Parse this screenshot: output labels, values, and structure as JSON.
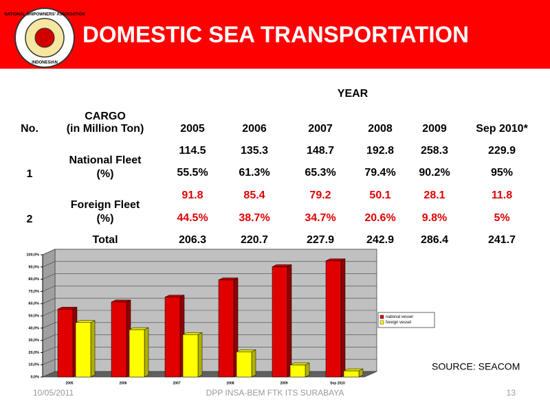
{
  "header": {
    "title": "DOMESTIC SEA TRANSPORTATION",
    "logo_text": [
      "NATIONAL SHIPOWNERS' ASSOCIATION",
      "INDONESIAN"
    ]
  },
  "table": {
    "year_label": "YEAR",
    "no_header": "No.",
    "cargo_header": [
      "CARGO",
      "(in Million Ton)"
    ],
    "years": [
      "2005",
      "2006",
      "2007",
      "2008",
      "2009",
      "Sep 2010*"
    ],
    "rows": [
      {
        "no": "1",
        "label": [
          "National Fleet",
          "(%)"
        ],
        "values": [
          "114.5",
          "135.3",
          "148.7",
          "192.8",
          "258.3",
          "229.9"
        ],
        "shares": [
          "55.5%",
          "61.3%",
          "65.3%",
          "79.4%",
          "90.2%",
          "95%"
        ]
      },
      {
        "no": "2",
        "label": [
          "Foreign Fleet",
          "(%)"
        ],
        "values": [
          "91.8",
          "85.4",
          "79.2",
          "50.1",
          "28.1",
          "11.8"
        ],
        "shares": [
          "44.5%",
          "38.7%",
          "34.7%",
          "20.6%",
          "9.8%",
          "5%"
        ]
      }
    ],
    "total": {
      "label": "Total",
      "values": [
        "206.3",
        "220.7",
        "227.9",
        "242.9",
        "286.4",
        "241.7"
      ]
    }
  },
  "chart_data": {
    "type": "bar3d",
    "categories": [
      "2005",
      "2006",
      "2007",
      "2008",
      "2009",
      "Sep 2010"
    ],
    "series": [
      {
        "name": "national vessel",
        "color": "#e00000",
        "values": [
          55.5,
          61.3,
          65.3,
          79.4,
          90.2,
          95
        ]
      },
      {
        "name": "foreign vessel",
        "color": "#ffff00",
        "values": [
          44.5,
          38.7,
          34.7,
          20.6,
          9.8,
          5
        ]
      }
    ],
    "ylim": [
      0,
      100
    ],
    "yticks": [
      {
        "value": 0,
        "label": "0,0%"
      },
      {
        "value": 10,
        "label": "10,0%"
      },
      {
        "value": 20,
        "label": "20,0%"
      },
      {
        "value": 30,
        "label": "30,0%"
      },
      {
        "value": 40,
        "label": "40,0%"
      },
      {
        "value": 50,
        "label": "50,0%"
      },
      {
        "value": 60,
        "label": "60,0%"
      },
      {
        "value": 70,
        "label": "70,0%"
      },
      {
        "value": 80,
        "label": "80,0%"
      },
      {
        "value": 90,
        "label": "90,0%"
      },
      {
        "value": 100,
        "label": "100,0%"
      }
    ],
    "grid": true,
    "legend": "right"
  },
  "source": "SOURCE: SEACOM",
  "footer": {
    "date": "10/05/2011",
    "center": "DPP INSA-BEM FTK ITS SURABAYA",
    "page": "13"
  }
}
